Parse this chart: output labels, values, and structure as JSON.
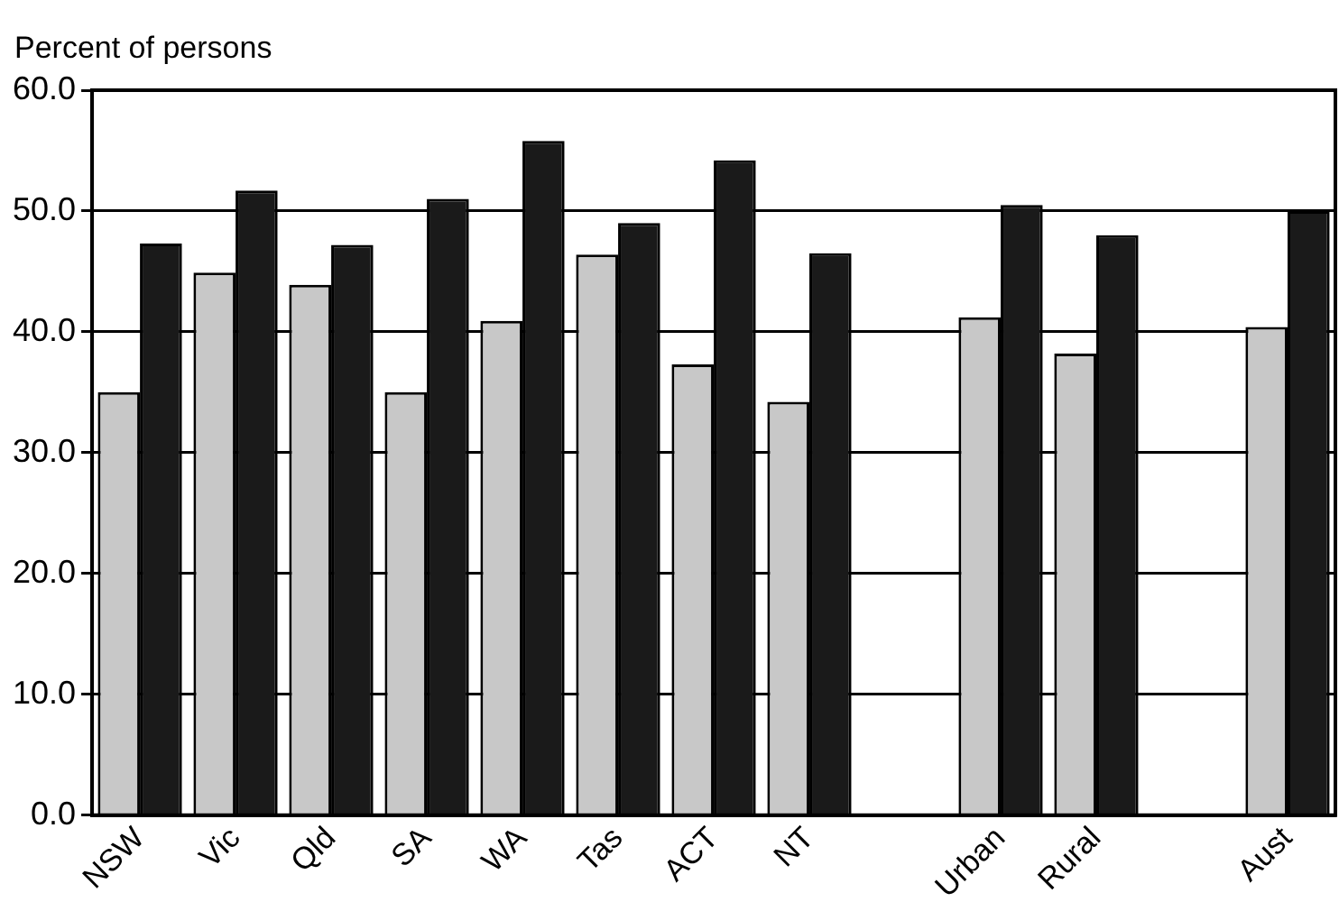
{
  "chart_data": {
    "type": "bar",
    "ylabel": "Percent of persons",
    "categories": [
      "NSW",
      "Vic",
      "Qld",
      "SA",
      "WA",
      "Tas",
      "ACT",
      "NT",
      null,
      "Urban",
      "Rural",
      null,
      "Aust"
    ],
    "series": [
      {
        "color": "#c8c8c8",
        "values": [
          35.0,
          44.9,
          43.9,
          35.0,
          40.9,
          46.4,
          37.3,
          34.2,
          null,
          41.2,
          38.2,
          null,
          40.4
        ]
      },
      {
        "color": "#1a1a1a",
        "values": [
          47.3,
          51.7,
          47.2,
          51.0,
          55.8,
          49.0,
          54.2,
          46.5,
          null,
          50.5,
          48.0,
          null,
          50.0
        ]
      }
    ],
    "ylim": [
      0,
      60
    ],
    "yticks": [
      {
        "value": 0,
        "label": "0.0"
      },
      {
        "value": 10,
        "label": "10.0"
      },
      {
        "value": 20,
        "label": "20.0"
      },
      {
        "value": 30,
        "label": "30.0"
      },
      {
        "value": 40,
        "label": "40.0"
      },
      {
        "value": 50,
        "label": "50.0"
      },
      {
        "value": 60,
        "label": "60.0"
      }
    ],
    "grid": "y",
    "legend": false
  }
}
